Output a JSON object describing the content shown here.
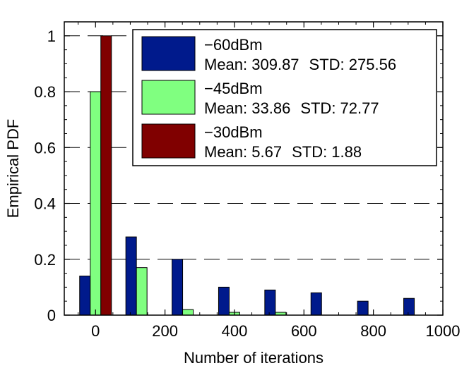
{
  "chart_data": {
    "type": "bar",
    "title": "",
    "xlabel": "Number of iterations",
    "ylabel": "Empirical PDF",
    "xlim": [
      -90,
      1000
    ],
    "ylim": [
      0,
      1.05
    ],
    "x": [
      0,
      133,
      266,
      400,
      533,
      666,
      800,
      933
    ],
    "xticks": [
      "0",
      "200",
      "400",
      "600",
      "800",
      "1000"
    ],
    "yticks": [
      "0",
      "0.2",
      "0.4",
      "0.6",
      "0.8",
      "1"
    ],
    "grid": "horizontal dashed",
    "legend_position": "top-right",
    "series": [
      {
        "name": "−60dBm",
        "mean_label": "Mean: 309.87",
        "std_label": "STD: 275.56",
        "color": "#001a8c",
        "values": [
          0.14,
          0.28,
          0.2,
          0.1,
          0.09,
          0.08,
          0.05,
          0.06
        ]
      },
      {
        "name": "−45dBm",
        "mean_label": "Mean: 33.86",
        "std_label": "STD: 72.77",
        "color": "#80ff80",
        "values": [
          0.8,
          0.17,
          0.02,
          0.01,
          0.01,
          0,
          0,
          0
        ]
      },
      {
        "name": "−30dBm",
        "mean_label": "Mean: 5.67",
        "std_label": "STD: 1.88",
        "color": "#800000",
        "values": [
          1.0,
          0,
          0,
          0,
          0,
          0,
          0,
          0
        ]
      }
    ]
  }
}
